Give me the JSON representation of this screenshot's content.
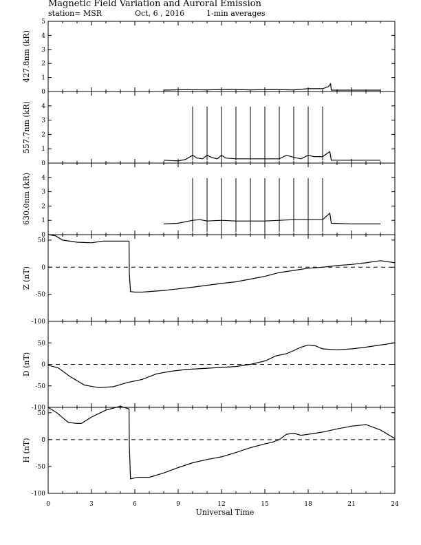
{
  "header": {
    "title": "Magnetic Field Variation and Auroral Emission",
    "station": "station= MSR",
    "date": "Oct, 6  , 2016",
    "averaging": "1-min averages"
  },
  "chart_data": [
    {
      "type": "line",
      "id": "p4278",
      "ylabel": "427.8nm (kR)",
      "ylim": [
        0,
        5
      ],
      "yticks": [
        0,
        1,
        2,
        3,
        4,
        5
      ],
      "xlim": [
        0,
        24
      ],
      "zero_line": false,
      "series": [
        {
          "points": [
            [
              8.0,
              0.1
            ],
            [
              9.5,
              0.13
            ],
            [
              11,
              0.12
            ],
            [
              12.5,
              0.15
            ],
            [
              14,
              0.12
            ],
            [
              15.5,
              0.14
            ],
            [
              17,
              0.12
            ],
            [
              18,
              0.2
            ],
            [
              19.0,
              0.2
            ],
            [
              19.4,
              0.35
            ],
            [
              19.55,
              0.55
            ],
            [
              19.6,
              0.1
            ],
            [
              21,
              0.1
            ],
            [
              23.0,
              0.1
            ]
          ]
        }
      ]
    },
    {
      "type": "line",
      "id": "p5577",
      "ylabel": "557.7nm (kR)",
      "ylim": [
        0,
        5
      ],
      "yticks": [
        0,
        1,
        2,
        3,
        4
      ],
      "xlim": [
        0,
        24
      ],
      "zero_line": false,
      "spikes": {
        "x": [
          10,
          11,
          12,
          13,
          14,
          15,
          16,
          17,
          18,
          19
        ],
        "y": 3.95
      },
      "series": [
        {
          "points": [
            [
              8.0,
              0.2
            ],
            [
              9.0,
              0.15
            ],
            [
              9.5,
              0.25
            ],
            [
              10.0,
              0.55
            ],
            [
              10.3,
              0.35
            ],
            [
              10.7,
              0.3
            ],
            [
              11.0,
              0.55
            ],
            [
              11.3,
              0.4
            ],
            [
              11.7,
              0.3
            ],
            [
              12.0,
              0.55
            ],
            [
              12.3,
              0.35
            ],
            [
              13.0,
              0.3
            ],
            [
              14.0,
              0.3
            ],
            [
              15.0,
              0.3
            ],
            [
              16.0,
              0.3
            ],
            [
              16.5,
              0.55
            ],
            [
              17.0,
              0.4
            ],
            [
              17.5,
              0.3
            ],
            [
              18.0,
              0.55
            ],
            [
              18.4,
              0.45
            ],
            [
              19.0,
              0.45
            ],
            [
              19.5,
              0.8
            ],
            [
              19.6,
              0.2
            ],
            [
              21,
              0.2
            ],
            [
              23.0,
              0.2
            ]
          ]
        }
      ]
    },
    {
      "type": "line",
      "id": "p6300",
      "ylabel": "630.0nm (kR)",
      "ylim": [
        0,
        5
      ],
      "yticks": [
        0,
        1,
        2,
        3,
        4
      ],
      "xlim": [
        0,
        24
      ],
      "zero_line": false,
      "spikes": {
        "x": [
          10,
          11,
          12,
          13,
          14,
          15,
          16,
          17,
          18,
          19
        ],
        "y": 3.95
      },
      "series": [
        {
          "points": [
            [
              8.0,
              0.75
            ],
            [
              9.0,
              0.8
            ],
            [
              10.0,
              1.0
            ],
            [
              10.5,
              1.05
            ],
            [
              11.0,
              0.95
            ],
            [
              12.0,
              1.0
            ],
            [
              13.0,
              0.95
            ],
            [
              14.0,
              0.95
            ],
            [
              15.0,
              0.95
            ],
            [
              16.0,
              1.0
            ],
            [
              17.0,
              1.05
            ],
            [
              18.0,
              1.05
            ],
            [
              19.0,
              1.05
            ],
            [
              19.5,
              1.5
            ],
            [
              19.6,
              0.8
            ],
            [
              21,
              0.75
            ],
            [
              23.0,
              0.75
            ]
          ]
        }
      ]
    },
    {
      "type": "line",
      "id": "pZ",
      "ylabel": "Z (nT)",
      "ylim": [
        -100,
        60
      ],
      "yticks": [
        -100,
        -50,
        0,
        50
      ],
      "xlim": [
        0,
        24
      ],
      "zero_line": true,
      "series": [
        {
          "points": [
            [
              0,
              60
            ],
            [
              0.5,
              58
            ],
            [
              1,
              50
            ],
            [
              2,
              46
            ],
            [
              3,
              45
            ],
            [
              3.8,
              48
            ],
            [
              4.5,
              48
            ],
            [
              5.0,
              48
            ],
            [
              5.6,
              48
            ],
            [
              5.62,
              -12
            ],
            [
              5.7,
              -45
            ],
            [
              6,
              -46
            ],
            [
              6.5,
              -46
            ],
            [
              8,
              -43
            ],
            [
              10,
              -37
            ],
            [
              12,
              -30
            ],
            [
              13,
              -27
            ],
            [
              14,
              -22
            ],
            [
              15,
              -17
            ],
            [
              16,
              -10
            ],
            [
              17,
              -6
            ],
            [
              18,
              -2
            ],
            [
              19,
              0
            ],
            [
              20,
              3
            ],
            [
              21,
              5
            ],
            [
              22,
              8
            ],
            [
              23,
              12
            ],
            [
              24,
              8
            ]
          ]
        }
      ]
    },
    {
      "type": "line",
      "id": "pD",
      "ylabel": "D (nT)",
      "ylim": [
        -100,
        100
      ],
      "yticks": [
        -100,
        -50,
        0,
        50
      ],
      "xlim": [
        0,
        24
      ],
      "zero_line": true,
      "series": [
        {
          "points": [
            [
              0,
              -2
            ],
            [
              0.7,
              -8
            ],
            [
              1.5,
              -28
            ],
            [
              2.5,
              -48
            ],
            [
              3.5,
              -54
            ],
            [
              4.5,
              -52
            ],
            [
              5.5,
              -42
            ],
            [
              6.5,
              -35
            ],
            [
              7.5,
              -22
            ],
            [
              8.5,
              -16
            ],
            [
              9.5,
              -12
            ],
            [
              11,
              -9
            ],
            [
              12,
              -7
            ],
            [
              13,
              -5
            ],
            [
              14,
              0
            ],
            [
              15,
              8
            ],
            [
              15.8,
              20
            ],
            [
              16.5,
              25
            ],
            [
              17,
              32
            ],
            [
              17.5,
              40
            ],
            [
              18,
              45
            ],
            [
              18.5,
              43
            ],
            [
              19,
              36
            ],
            [
              20,
              34
            ],
            [
              21,
              36
            ],
            [
              22,
              40
            ],
            [
              23,
              45
            ],
            [
              24,
              50
            ]
          ]
        }
      ]
    },
    {
      "type": "line",
      "id": "pH",
      "ylabel": "H (nT)",
      "ylim": [
        -100,
        60
      ],
      "yticks": [
        -100,
        -50,
        0,
        50
      ],
      "xlim": [
        0,
        24
      ],
      "zero_line": true,
      "series": [
        {
          "points": [
            [
              0,
              60
            ],
            [
              0.6,
              50
            ],
            [
              1.4,
              32
            ],
            [
              2.0,
              30
            ],
            [
              2.3,
              30
            ],
            [
              3.0,
              42
            ],
            [
              4,
              55
            ],
            [
              5,
              62
            ],
            [
              5.6,
              57
            ],
            [
              5.62,
              -10
            ],
            [
              5.7,
              -73
            ],
            [
              6.2,
              -70
            ],
            [
              7,
              -70
            ],
            [
              8,
              -62
            ],
            [
              9,
              -52
            ],
            [
              10,
              -43
            ],
            [
              11,
              -37
            ],
            [
              12,
              -32
            ],
            [
              13,
              -24
            ],
            [
              14,
              -15
            ],
            [
              15,
              -8
            ],
            [
              15.5,
              -5
            ],
            [
              16,
              0
            ],
            [
              16.5,
              10
            ],
            [
              17,
              12
            ],
            [
              17.5,
              8
            ],
            [
              18,
              10
            ],
            [
              19,
              14
            ],
            [
              20,
              20
            ],
            [
              21,
              25
            ],
            [
              22,
              28
            ],
            [
              23,
              18
            ],
            [
              24,
              2
            ]
          ]
        }
      ]
    }
  ],
  "x_axis": {
    "label": "Universal Time",
    "ticks": [
      "0",
      "3",
      "6",
      "9",
      "12",
      "15",
      "18",
      "21",
      "24"
    ]
  }
}
